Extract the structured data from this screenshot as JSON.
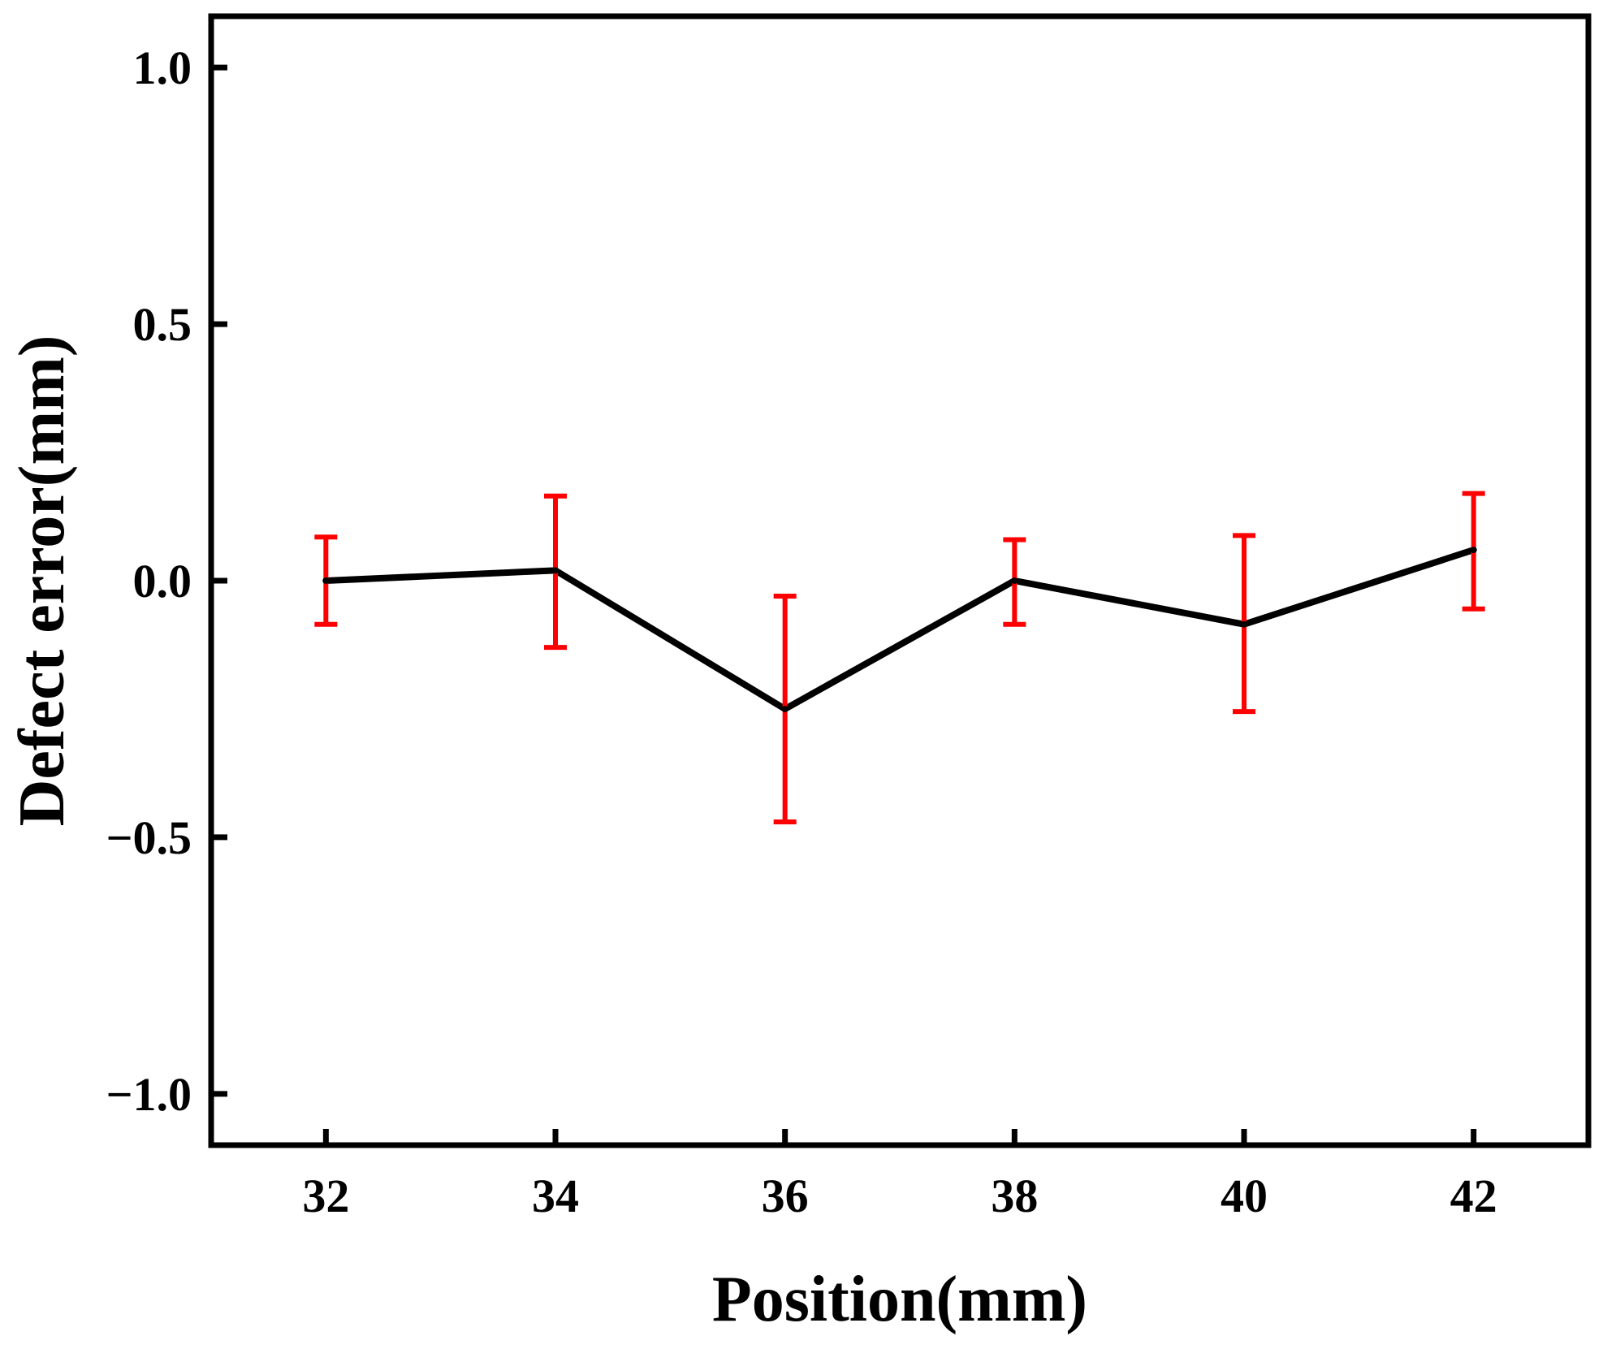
{
  "chart_data": {
    "type": "line",
    "title": "",
    "xlabel": "Position(mm)",
    "ylabel": "Defect error(mm)",
    "xlim": [
      31,
      43
    ],
    "ylim": [
      -1.1,
      1.1
    ],
    "x_ticks": [
      32,
      34,
      36,
      38,
      40,
      42
    ],
    "x_tick_labels": [
      "32",
      "34",
      "36",
      "38",
      "40",
      "42"
    ],
    "y_ticks": [
      -1.0,
      -0.5,
      0.0,
      0.5,
      1.0
    ],
    "y_tick_labels": [
      "−1.0",
      "−0.5",
      "0.0",
      "0.5",
      "1.0"
    ],
    "grid": false,
    "series": [
      {
        "name": "Defect error",
        "line_color": "#000000",
        "errorbar_color": "#ff0000",
        "x": [
          32,
          34,
          36,
          38,
          40,
          42
        ],
        "y": [
          0.0,
          0.02,
          -0.25,
          0.0,
          -0.085,
          0.06
        ],
        "err_low": [
          -0.085,
          -0.13,
          -0.47,
          -0.085,
          -0.255,
          -0.055
        ],
        "err_high": [
          0.085,
          0.165,
          -0.03,
          0.08,
          0.088,
          0.17
        ]
      }
    ]
  }
}
